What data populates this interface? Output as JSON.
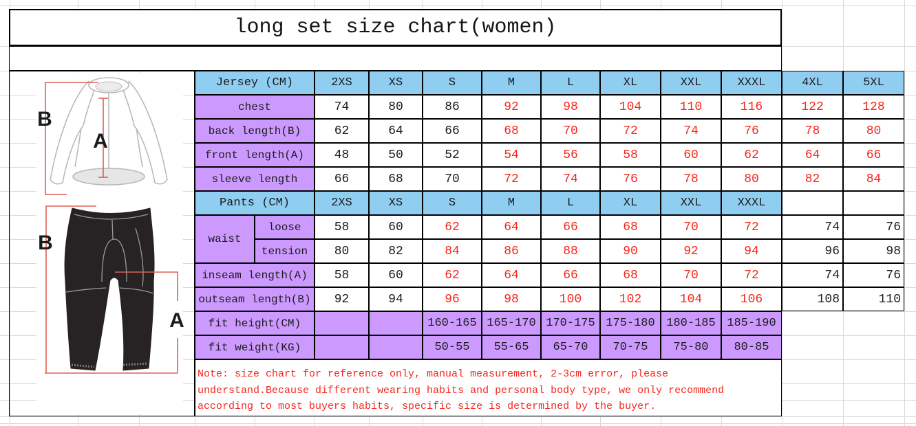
{
  "title": "long set size chart(women)",
  "colors": {
    "header_blue": "#8FCDF1",
    "label_purple": "#CC99FF",
    "red_text": "#F5271D",
    "black_text": "#1C1C1C",
    "table_border": "#000000",
    "grid_line": "#D9D9D9",
    "diagram_red": "#DC6055",
    "pants_fill": "#272325",
    "outline_gray": "#B9B9B9"
  },
  "sizes": [
    "2XS",
    "XS",
    "S",
    "M",
    "L",
    "XL",
    "XXL",
    "XXXL",
    "4XL",
    "5XL"
  ],
  "jersey": {
    "header_label": "Jersey (CM)",
    "black_value_columns": 3,
    "rows": [
      {
        "label": "chest",
        "values": [
          "74",
          "80",
          "86",
          "92",
          "98",
          "104",
          "110",
          "116",
          "122",
          "128"
        ]
      },
      {
        "label": "back length(B)",
        "values": [
          "62",
          "64",
          "66",
          "68",
          "70",
          "72",
          "74",
          "76",
          "78",
          "80"
        ]
      },
      {
        "label": "front length(A)",
        "values": [
          "48",
          "50",
          "52",
          "54",
          "56",
          "58",
          "60",
          "62",
          "64",
          "66"
        ]
      },
      {
        "label": "sleeve length",
        "values": [
          "66",
          "68",
          "70",
          "72",
          "74",
          "76",
          "78",
          "80",
          "82",
          "84"
        ]
      }
    ]
  },
  "pants": {
    "header_label": "Pants (CM)",
    "header_size_count": 8,
    "black_value_columns": 2,
    "unformatted_from_column": 8,
    "waist_label": "waist",
    "waist_rows": [
      {
        "label": "loose",
        "values": [
          "58",
          "60",
          "62",
          "64",
          "66",
          "68",
          "70",
          "72",
          "74",
          "76"
        ]
      },
      {
        "label": "tension",
        "values": [
          "80",
          "82",
          "84",
          "86",
          "88",
          "90",
          "92",
          "94",
          "96",
          "98"
        ]
      }
    ],
    "rows": [
      {
        "label": "inseam length(A)",
        "values": [
          "58",
          "60",
          "62",
          "64",
          "66",
          "68",
          "70",
          "72",
          "74",
          "76"
        ]
      },
      {
        "label": "outseam length(B)",
        "values": [
          "92",
          "94",
          "96",
          "98",
          "100",
          "102",
          "104",
          "106",
          "108",
          "110"
        ]
      }
    ]
  },
  "fit": {
    "rows": [
      {
        "label": "fit height(CM)",
        "values": [
          "",
          "",
          "160-165",
          "165-170",
          "170-175",
          "175-180",
          "180-185",
          "185-190"
        ]
      },
      {
        "label": "fit weight(KG)",
        "values": [
          "",
          "",
          "50-55",
          "55-65",
          "65-70",
          "70-75",
          "75-80",
          "80-85"
        ]
      }
    ]
  },
  "note_lines": [
    "Note: size chart for reference only, manual measurement, 2-3cm error, please",
    "understand.Because different wearing habits and personal body type, we only recommend",
    "according to most buyers habits, specific size is determined by the buyer."
  ],
  "diagram": {
    "jersey_back_label": "B",
    "jersey_front_label": "A",
    "pants_outseam_label": "B",
    "pants_inseam_label": "A"
  },
  "chart_data": {
    "type": "table",
    "title": "long set size chart(women)",
    "columns": [
      "2XS",
      "XS",
      "S",
      "M",
      "L",
      "XL",
      "XXL",
      "XXXL",
      "4XL",
      "5XL"
    ],
    "rows": [
      {
        "section": "Jersey (CM)",
        "name": "chest",
        "values": [
          74,
          80,
          86,
          92,
          98,
          104,
          110,
          116,
          122,
          128
        ]
      },
      {
        "section": "Jersey (CM)",
        "name": "back length(B)",
        "values": [
          62,
          64,
          66,
          68,
          70,
          72,
          74,
          76,
          78,
          80
        ]
      },
      {
        "section": "Jersey (CM)",
        "name": "front length(A)",
        "values": [
          48,
          50,
          52,
          54,
          56,
          58,
          60,
          62,
          64,
          66
        ]
      },
      {
        "section": "Jersey (CM)",
        "name": "sleeve length",
        "values": [
          66,
          68,
          70,
          72,
          74,
          76,
          78,
          80,
          82,
          84
        ]
      },
      {
        "section": "Pants (CM)",
        "name": "waist loose",
        "values": [
          58,
          60,
          62,
          64,
          66,
          68,
          70,
          72,
          74,
          76
        ]
      },
      {
        "section": "Pants (CM)",
        "name": "waist tension",
        "values": [
          80,
          82,
          84,
          86,
          88,
          90,
          92,
          94,
          96,
          98
        ]
      },
      {
        "section": "Pants (CM)",
        "name": "inseam length(A)",
        "values": [
          58,
          60,
          62,
          64,
          66,
          68,
          70,
          72,
          74,
          76
        ]
      },
      {
        "section": "Pants (CM)",
        "name": "outseam length(B)",
        "values": [
          92,
          94,
          96,
          98,
          100,
          102,
          104,
          106,
          108,
          110
        ]
      },
      {
        "section": "fit",
        "name": "fit height(CM)",
        "values": [
          "",
          "",
          "160-165",
          "165-170",
          "170-175",
          "175-180",
          "180-185",
          "185-190",
          "",
          ""
        ]
      },
      {
        "section": "fit",
        "name": "fit weight(KG)",
        "values": [
          "",
          "",
          "50-55",
          "55-65",
          "65-70",
          "70-75",
          "75-80",
          "80-85",
          "",
          ""
        ]
      }
    ]
  }
}
